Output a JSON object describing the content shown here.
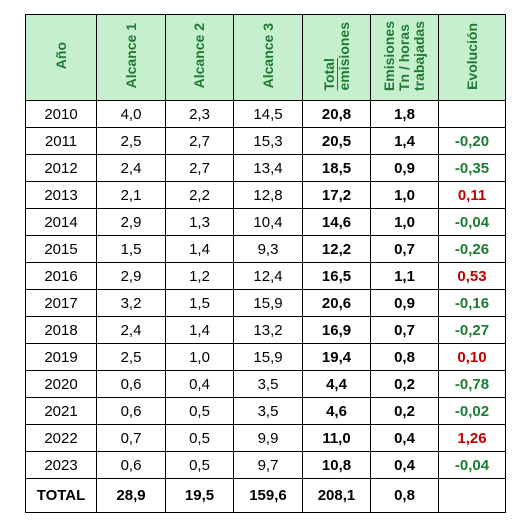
{
  "table": {
    "headers": [
      [
        "Año"
      ],
      [
        "Alcance 1"
      ],
      [
        "Alcance 2"
      ],
      [
        "Alcance 3"
      ],
      [
        "Total",
        "emisiones"
      ],
      [
        "Emisiones",
        "Tn / horas",
        "trabajadas"
      ],
      [
        "Evolución"
      ]
    ],
    "rows": [
      [
        "2010",
        "4,0",
        "2,3",
        "14,5",
        "20,8",
        "1,8",
        null
      ],
      [
        "2011",
        "2,5",
        "2,7",
        "15,3",
        "20,5",
        "1,4",
        "-0,20"
      ],
      [
        "2012",
        "2,4",
        "2,7",
        "13,4",
        "18,5",
        "0,9",
        "-0,35"
      ],
      [
        "2013",
        "2,1",
        "2,2",
        "12,8",
        "17,2",
        "1,0",
        "0,11"
      ],
      [
        "2014",
        "2,9",
        "1,3",
        "10,4",
        "14,6",
        "1,0",
        "-0,04"
      ],
      [
        "2015",
        "1,5",
        "1,4",
        "9,3",
        "12,2",
        "0,7",
        "-0,26"
      ],
      [
        "2016",
        "2,9",
        "1,2",
        "12,4",
        "16,5",
        "1,1",
        "0,53"
      ],
      [
        "2017",
        "3,2",
        "1,5",
        "15,9",
        "20,6",
        "0,9",
        "-0,16"
      ],
      [
        "2018",
        "2,4",
        "1,4",
        "13,2",
        "16,9",
        "0,7",
        "-0,27"
      ],
      [
        "2019",
        "2,5",
        "1,0",
        "15,9",
        "19,4",
        "0,8",
        "0,10"
      ],
      [
        "2020",
        "0,6",
        "0,4",
        "3,5",
        "4,4",
        "0,2",
        "-0,78"
      ],
      [
        "2021",
        "0,6",
        "0,5",
        "3,5",
        "4,6",
        "0,2",
        "-0,02"
      ],
      [
        "2022",
        "0,7",
        "0,5",
        "9,9",
        "11,0",
        "0,4",
        "1,26"
      ],
      [
        "2023",
        "0,6",
        "0,5",
        "9,7",
        "10,8",
        "0,4",
        "-0,04"
      ]
    ],
    "total": [
      "TOTAL",
      "28,9",
      "19,5",
      "159,6",
      "208,1",
      "0,8"
    ]
  }
}
